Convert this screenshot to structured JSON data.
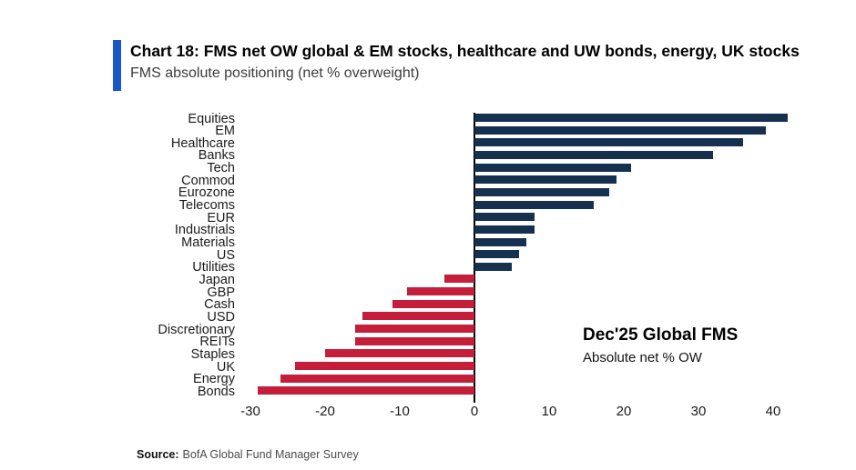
{
  "header": {
    "title": "Chart 18: FMS net OW global & EM stocks, healthcare and UW bonds, energy, UK stocks",
    "subtitle": "FMS absolute positioning (net % overweight)",
    "accent_color": "#1857C5"
  },
  "chart_data": {
    "type": "bar",
    "orientation": "horizontal",
    "title": "Chart 18: FMS net OW global & EM stocks, healthcare and UW bonds, energy, UK stocks",
    "subtitle": "FMS absolute positioning (net % overweight)",
    "categories": [
      "Equities",
      "EM",
      "Healthcare",
      "Banks",
      "Tech",
      "Commod",
      "Eurozone",
      "Telecoms",
      "EUR",
      "Industrials",
      "Materials",
      "US",
      "Utilities",
      "Japan",
      "GBP",
      "Cash",
      "USD",
      "Discretionary",
      "REITs",
      "Staples",
      "UK",
      "Energy",
      "Bonds"
    ],
    "values": [
      42,
      39,
      36,
      32,
      21,
      19,
      18,
      16,
      8,
      8,
      7,
      6,
      5,
      -4,
      -9,
      -11,
      -15,
      -16,
      -16,
      -20,
      -24,
      -26,
      -29
    ],
    "x_ticks": [
      -30,
      -20,
      -10,
      0,
      10,
      20,
      30,
      40
    ],
    "xlim": [
      -32,
      47
    ],
    "xlabel": "",
    "ylabel": "",
    "grid": false,
    "legend": false,
    "positive_color": "#16304F",
    "negative_color": "#C41E3A",
    "annotation": {
      "line1": "Dec'25 Global FMS",
      "line2": "Absolute net % OW"
    }
  },
  "footer": {
    "source_label": "Source:",
    "source_text": "BofA Global Fund Manager Survey"
  }
}
